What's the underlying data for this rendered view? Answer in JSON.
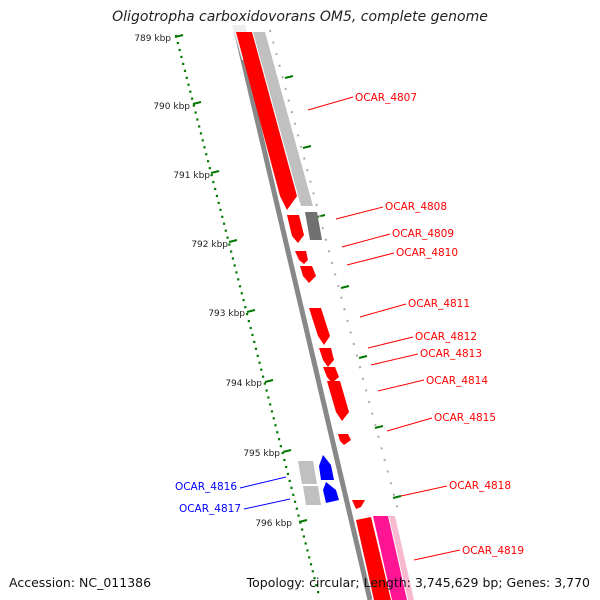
{
  "title": "Oligotropha carboxidovorans OM5, complete genome",
  "accession_label": "Accession: NC_011386",
  "topology_label": "Topology: circular; Length: 3,745,629 bp; Genes: 3,770",
  "colors": {
    "forward_gene": "#ff0000",
    "reverse_gene": "#0000ff",
    "pink_gene": "#ff1493",
    "light_track": "#c0c0c0",
    "dark_track": "#707070",
    "axis_line": "#888888",
    "kbp_ticks": "#007700"
  },
  "kbp_labels": [
    "789 kbp",
    "790 kbp",
    "791 kbp",
    "792 kbp",
    "793 kbp",
    "794 kbp",
    "795 kbp",
    "796 kbp"
  ],
  "gene_labels": [
    {
      "text": "OCAR_4807",
      "color": "red"
    },
    {
      "text": "OCAR_4808",
      "color": "red"
    },
    {
      "text": "OCAR_4809",
      "color": "red"
    },
    {
      "text": "OCAR_4810",
      "color": "red"
    },
    {
      "text": "OCAR_4811",
      "color": "red"
    },
    {
      "text": "OCAR_4812",
      "color": "red"
    },
    {
      "text": "OCAR_4813",
      "color": "red"
    },
    {
      "text": "OCAR_4814",
      "color": "red"
    },
    {
      "text": "OCAR_4815",
      "color": "red"
    },
    {
      "text": "OCAR_4818",
      "color": "red"
    },
    {
      "text": "OCAR_4819",
      "color": "red"
    },
    {
      "text": "OCAR_4816",
      "color": "blue"
    },
    {
      "text": "OCAR_4817",
      "color": "blue"
    }
  ]
}
